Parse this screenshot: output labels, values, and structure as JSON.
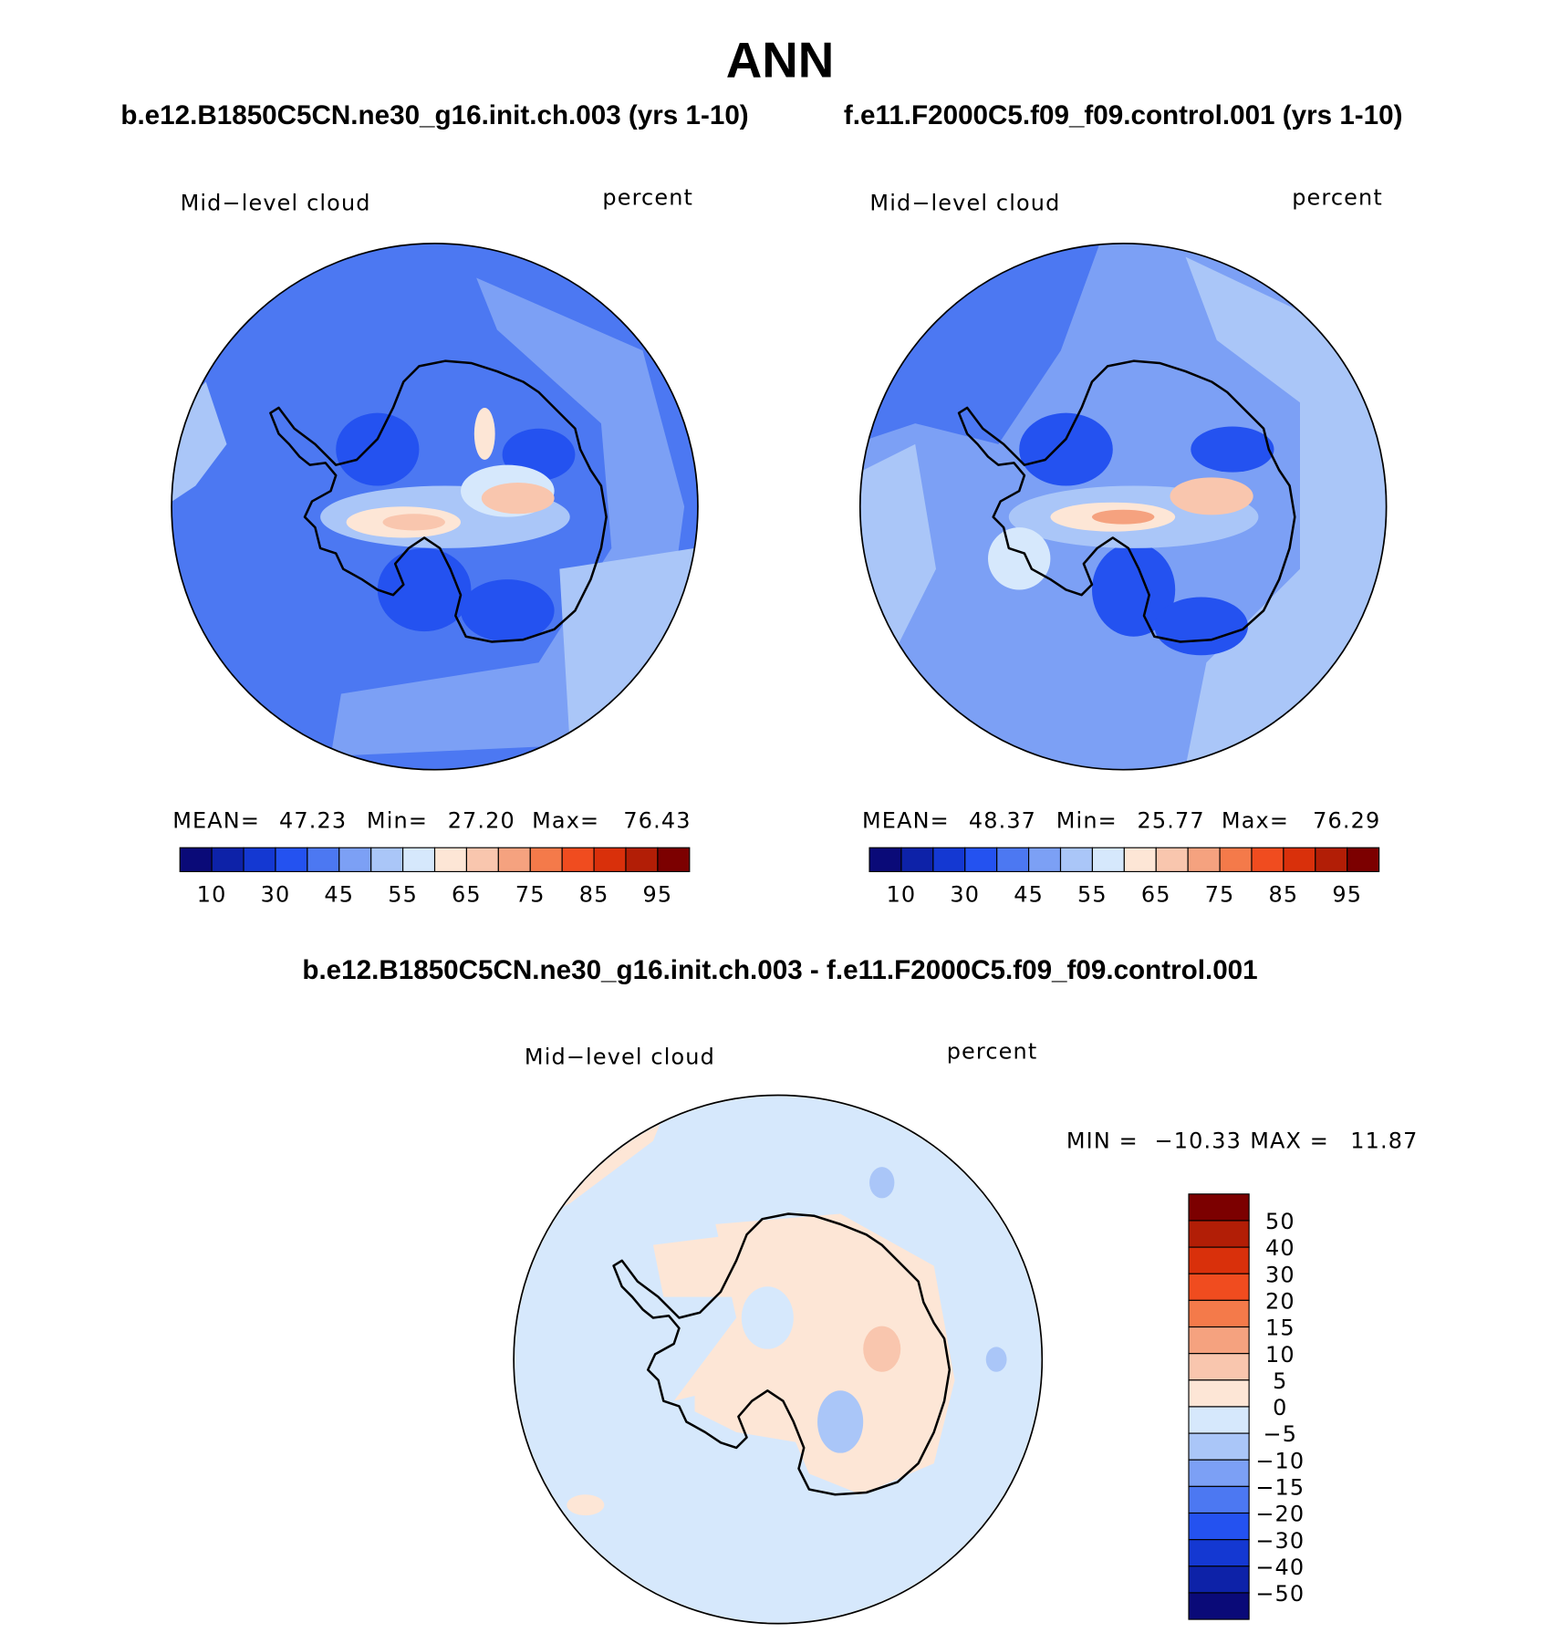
{
  "title": "ANN",
  "panels": [
    {
      "case": "b.e12.B1850C5CN.ne30_g16.init.ch.003 (yrs 1-10)",
      "variable": "Mid−level cloud",
      "units": "percent",
      "stats": {
        "mean_label": "MEAN=",
        "mean": "47.23",
        "min_label": "Min=",
        "min": "27.20",
        "max_label": "Max=",
        "max": "76.43"
      },
      "colorbar": {
        "labels": [
          "10",
          "30",
          "45",
          "55",
          "65",
          "75",
          "85",
          "95"
        ],
        "colors": [
          "#0a0a78",
          "#0d22a8",
          "#1438d2",
          "#2452f0",
          "#4c78f2",
          "#7ca0f5",
          "#aac6f8",
          "#d6e8fc",
          "#fde6d6",
          "#f9c6ae",
          "#f5a27f",
          "#f47a4a",
          "#f04c1f",
          "#d9300b",
          "#b21e06",
          "#7c0000"
        ]
      }
    },
    {
      "case": "f.e11.F2000C5.f09_f09.control.001 (yrs 1-10)",
      "variable": "Mid−level cloud",
      "units": "percent",
      "stats": {
        "mean_label": "MEAN=",
        "mean": "48.37",
        "min_label": "Min=",
        "min": "25.77",
        "max_label": "Max=",
        "max": "76.29"
      },
      "colorbar": {
        "labels": [
          "10",
          "30",
          "45",
          "55",
          "65",
          "75",
          "85",
          "95"
        ],
        "colors": [
          "#0a0a78",
          "#0d22a8",
          "#1438d2",
          "#2452f0",
          "#4c78f2",
          "#7ca0f5",
          "#aac6f8",
          "#d6e8fc",
          "#fde6d6",
          "#f9c6ae",
          "#f5a27f",
          "#f47a4a",
          "#f04c1f",
          "#d9300b",
          "#b21e06",
          "#7c0000"
        ]
      }
    }
  ],
  "difference": {
    "title": "b.e12.B1850C5CN.ne30_g16.init.ch.003 - f.e11.F2000C5.f09_f09.control.001",
    "variable": "Mid−level cloud",
    "units": "percent",
    "stats": {
      "min_label": "MIN =",
      "min": "−10.33",
      "max_label": "MAX =",
      "max": "11.87"
    },
    "colorbar": {
      "labels": [
        "50",
        "40",
        "30",
        "20",
        "15",
        "10",
        "5",
        "0",
        "−5",
        "−10",
        "−15",
        "−20",
        "−30",
        "−40",
        "−50"
      ],
      "colors": [
        "#7c0000",
        "#b21e06",
        "#d9300b",
        "#f04c1f",
        "#f47a4a",
        "#f5a27f",
        "#f9c6ae",
        "#fde6d6",
        "#d6e8fc",
        "#aac6f8",
        "#7ca0f5",
        "#4c78f2",
        "#2452f0",
        "#1438d2",
        "#0d22a8",
        "#0a0a78"
      ]
    }
  }
}
